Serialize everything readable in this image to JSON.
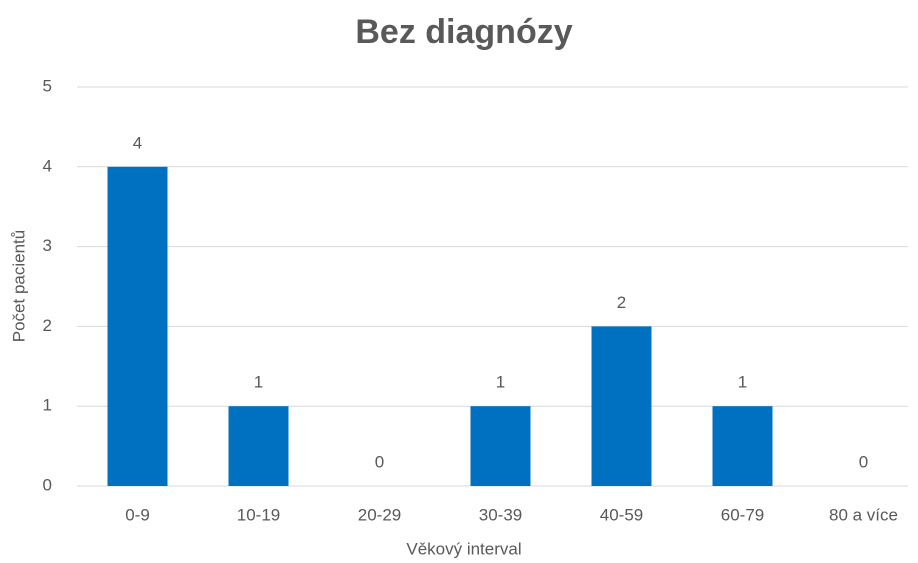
{
  "chart_data": {
    "type": "bar",
    "title": "Bez diagnózy",
    "categories": [
      "0-9",
      "10-19",
      "20-29",
      "30-39",
      "40-59",
      "60-79",
      "80 a více"
    ],
    "values": [
      4,
      1,
      0,
      1,
      2,
      1,
      0
    ],
    "color": "#0070c0",
    "xlabel": "Věkový interval",
    "ylabel": "Počet pacientů",
    "ylim": [
      0,
      5
    ],
    "yticks": [
      0,
      1,
      2,
      3,
      4,
      5
    ],
    "grid": true
  }
}
